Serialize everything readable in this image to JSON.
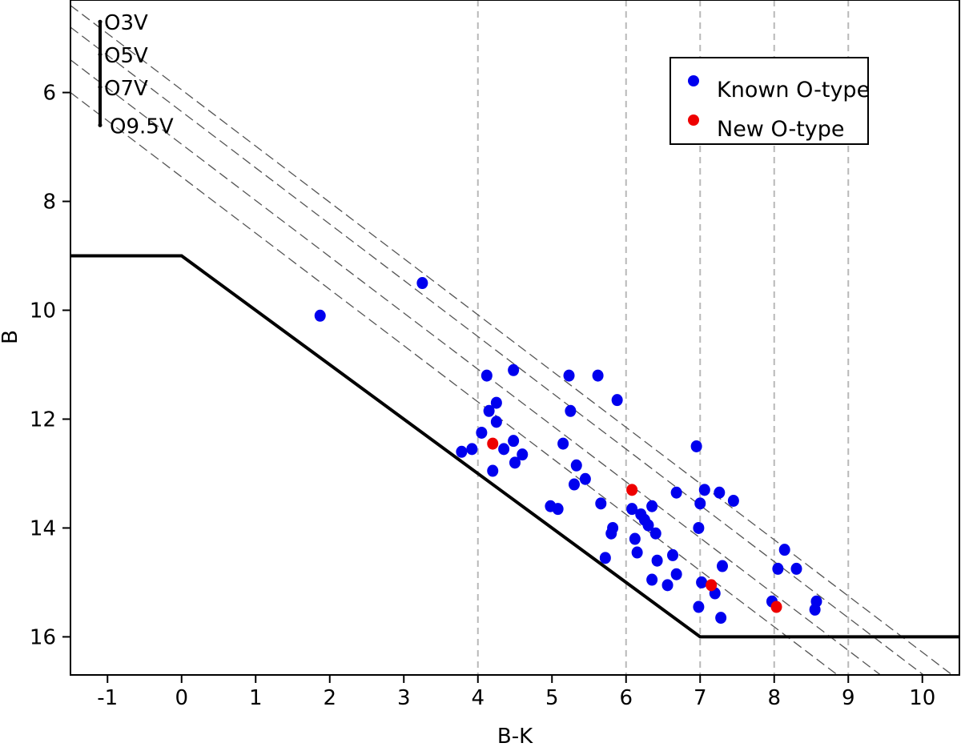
{
  "chart_data": {
    "type": "scatter",
    "xlabel": "B-K",
    "ylabel": "B",
    "xlim": [
      -1.5,
      10.5
    ],
    "ylim": [
      16.7,
      4.3
    ],
    "y_inverted": true,
    "xticks": [
      -1,
      0,
      1,
      2,
      3,
      4,
      5,
      6,
      7,
      8,
      9,
      10
    ],
    "yticks": [
      6,
      8,
      10,
      12,
      14,
      16
    ],
    "vlines": [
      4,
      6,
      7,
      8,
      9
    ],
    "limit_line": [
      [
        -1.5,
        9
      ],
      [
        0,
        9
      ],
      [
        7,
        16
      ],
      [
        10.5,
        16
      ]
    ],
    "reddening_lines": [
      {
        "label": "O3V",
        "points": [
          [
            -1.5,
            4.4
          ],
          [
            10.5,
            16.8
          ]
        ]
      },
      {
        "label": "O5V",
        "points": [
          [
            -1.5,
            4.8
          ],
          [
            10.5,
            17.2
          ]
        ]
      },
      {
        "label": "O7V",
        "points": [
          [
            -1.5,
            5.4
          ],
          [
            10.5,
            17.8
          ]
        ]
      },
      {
        "label": "O9.5V",
        "points": [
          [
            -1.5,
            6.0
          ],
          [
            10.5,
            18.4
          ]
        ]
      }
    ],
    "main_sequence": {
      "x": -1.1,
      "points": [
        {
          "label": "O3V",
          "y": 4.7
        },
        {
          "label": "O5V",
          "y": 5.3
        },
        {
          "label": "O7V",
          "y": 5.9
        },
        {
          "label": "O9.5V",
          "y": 6.6
        }
      ]
    },
    "legend": {
      "position": "top-right",
      "entries": [
        {
          "label": "Known O-type",
          "color": "#0000ee"
        },
        {
          "label": "New O-type",
          "color": "#ee0000"
        }
      ]
    },
    "series": [
      {
        "name": "Known O-type",
        "color": "#0000ee",
        "points": [
          [
            1.87,
            10.1
          ],
          [
            3.25,
            9.5
          ],
          [
            4.12,
            11.2
          ],
          [
            4.48,
            11.1
          ],
          [
            4.15,
            11.85
          ],
          [
            4.25,
            11.7
          ],
          [
            4.25,
            12.05
          ],
          [
            4.05,
            12.25
          ],
          [
            3.78,
            12.6
          ],
          [
            3.92,
            12.55
          ],
          [
            4.2,
            12.95
          ],
          [
            4.35,
            12.55
          ],
          [
            4.48,
            12.4
          ],
          [
            4.5,
            12.8
          ],
          [
            4.6,
            12.65
          ],
          [
            4.98,
            13.6
          ],
          [
            5.08,
            13.65
          ],
          [
            5.15,
            12.45
          ],
          [
            5.23,
            11.2
          ],
          [
            5.25,
            11.85
          ],
          [
            5.33,
            12.85
          ],
          [
            5.3,
            13.2
          ],
          [
            5.45,
            13.1
          ],
          [
            5.62,
            11.2
          ],
          [
            5.88,
            11.65
          ],
          [
            5.66,
            13.55
          ],
          [
            5.72,
            14.55
          ],
          [
            5.8,
            14.1
          ],
          [
            5.82,
            14.0
          ],
          [
            6.08,
            13.65
          ],
          [
            6.15,
            14.45
          ],
          [
            6.2,
            13.75
          ],
          [
            6.25,
            13.85
          ],
          [
            6.3,
            13.95
          ],
          [
            6.35,
            13.6
          ],
          [
            6.4,
            14.1
          ],
          [
            6.42,
            14.6
          ],
          [
            6.35,
            14.95
          ],
          [
            6.56,
            15.05
          ],
          [
            6.63,
            14.5
          ],
          [
            6.68,
            14.85
          ],
          [
            6.68,
            13.35
          ],
          [
            6.95,
            12.5
          ],
          [
            6.98,
            14.0
          ],
          [
            7.0,
            13.55
          ],
          [
            7.06,
            13.3
          ],
          [
            7.2,
            15.2
          ],
          [
            7.02,
            15.0
          ],
          [
            6.98,
            15.45
          ],
          [
            7.28,
            15.65
          ],
          [
            7.26,
            13.35
          ],
          [
            7.3,
            14.7
          ],
          [
            7.45,
            13.5
          ],
          [
            8.14,
            14.4
          ],
          [
            8.05,
            14.75
          ],
          [
            8.3,
            14.75
          ],
          [
            7.97,
            15.35
          ],
          [
            8.57,
            15.35
          ],
          [
            8.55,
            15.5
          ],
          [
            6.12,
            14.2
          ]
        ]
      },
      {
        "name": "New O-type",
        "color": "#ee0000",
        "points": [
          [
            4.2,
            12.45
          ],
          [
            6.08,
            13.3
          ],
          [
            7.15,
            15.05
          ],
          [
            8.03,
            15.45
          ]
        ]
      }
    ]
  }
}
